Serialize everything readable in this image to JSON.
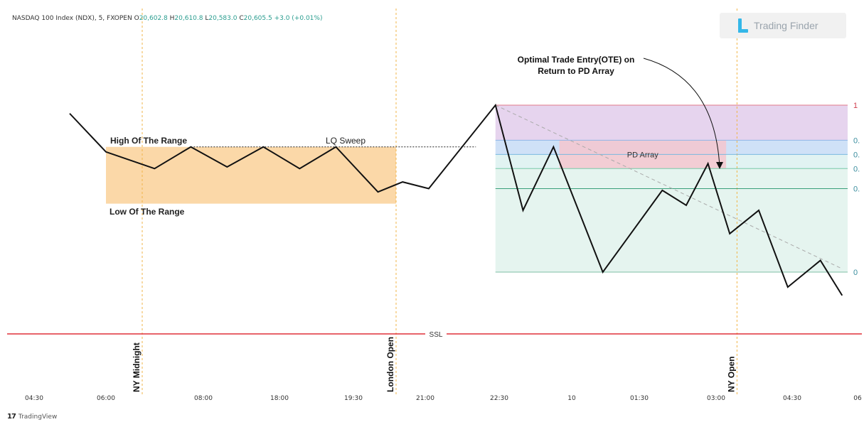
{
  "header": {
    "symbol": "NASDAQ 100 Index (NDX), 5, FXOPEN",
    "o_label": "O",
    "o": "20,602.8",
    "h_label": "H",
    "h": "20,610.8",
    "l_label": "L",
    "l": "20,583.0",
    "c_label": "C",
    "c": "20,605.5",
    "change": "+3.0 (+0.01%)"
  },
  "brand": {
    "name": "Trading Finder"
  },
  "footer": {
    "tradingview": "TradingView"
  },
  "colors": {
    "range_box": "#fbd8a8",
    "premium_zone": "#e6d4ee",
    "blue_zone": "#cfe1f7",
    "ote_zone": "#e1f3f2",
    "discount_zone": "#e5f4ef",
    "pd_array": "#f4c6cf",
    "ssl_line": "#e0303a",
    "session_line": "#f0b548"
  },
  "chart_data": {
    "type": "line",
    "x_ticks": [
      "04:30",
      "06:00",
      "08:00",
      "18:00",
      "19:30",
      "21:00",
      "22:30",
      "10",
      "01:30",
      "03:00",
      "04:30",
      "06"
    ],
    "price_path": [
      [
        0.0,
        0.95
      ],
      [
        0.5,
        0.72
      ],
      [
        1.17,
        0.62
      ],
      [
        1.67,
        0.75
      ],
      [
        2.17,
        0.63
      ],
      [
        2.67,
        0.75
      ],
      [
        3.17,
        0.62
      ],
      [
        3.67,
        0.75
      ],
      [
        4.25,
        0.48
      ],
      [
        4.59,
        0.54
      ],
      [
        4.95,
        0.5
      ],
      [
        5.87,
        1.0
      ],
      [
        6.25,
        0.37
      ],
      [
        6.67,
        0.75
      ],
      [
        7.35,
        0.0
      ],
      [
        8.17,
        0.49
      ],
      [
        8.5,
        0.4
      ],
      [
        8.8,
        0.65
      ],
      [
        9.1,
        0.23
      ],
      [
        9.5,
        0.37
      ],
      [
        9.9,
        -0.09
      ],
      [
        10.35,
        0.07
      ],
      [
        10.65,
        -0.14
      ]
    ],
    "fib_levels": [
      {
        "label": "1",
        "value": 1.0
      },
      {
        "label": "0.",
        "value": 0.79
      },
      {
        "label": "0.",
        "value": 0.705
      },
      {
        "label": "0.",
        "value": 0.62
      },
      {
        "label": "0.",
        "value": 0.5
      },
      {
        "label": "0",
        "value": 0.0
      }
    ],
    "sessions": [
      {
        "label": "NY Midnight",
        "x": 1.0
      },
      {
        "label": "London Open",
        "x": 4.5
      },
      {
        "label": "NY Open",
        "x": 9.2
      }
    ],
    "annotations": {
      "high_of_range": "High Of The Range",
      "low_of_range": "Low Of The Range",
      "lq_sweep": "LQ Sweep",
      "pd_array": "PD Array",
      "ote_line1": "Optimal Trade Entry(OTE) on",
      "ote_line2": "Return to PD Array",
      "ssl": "SSL"
    }
  }
}
